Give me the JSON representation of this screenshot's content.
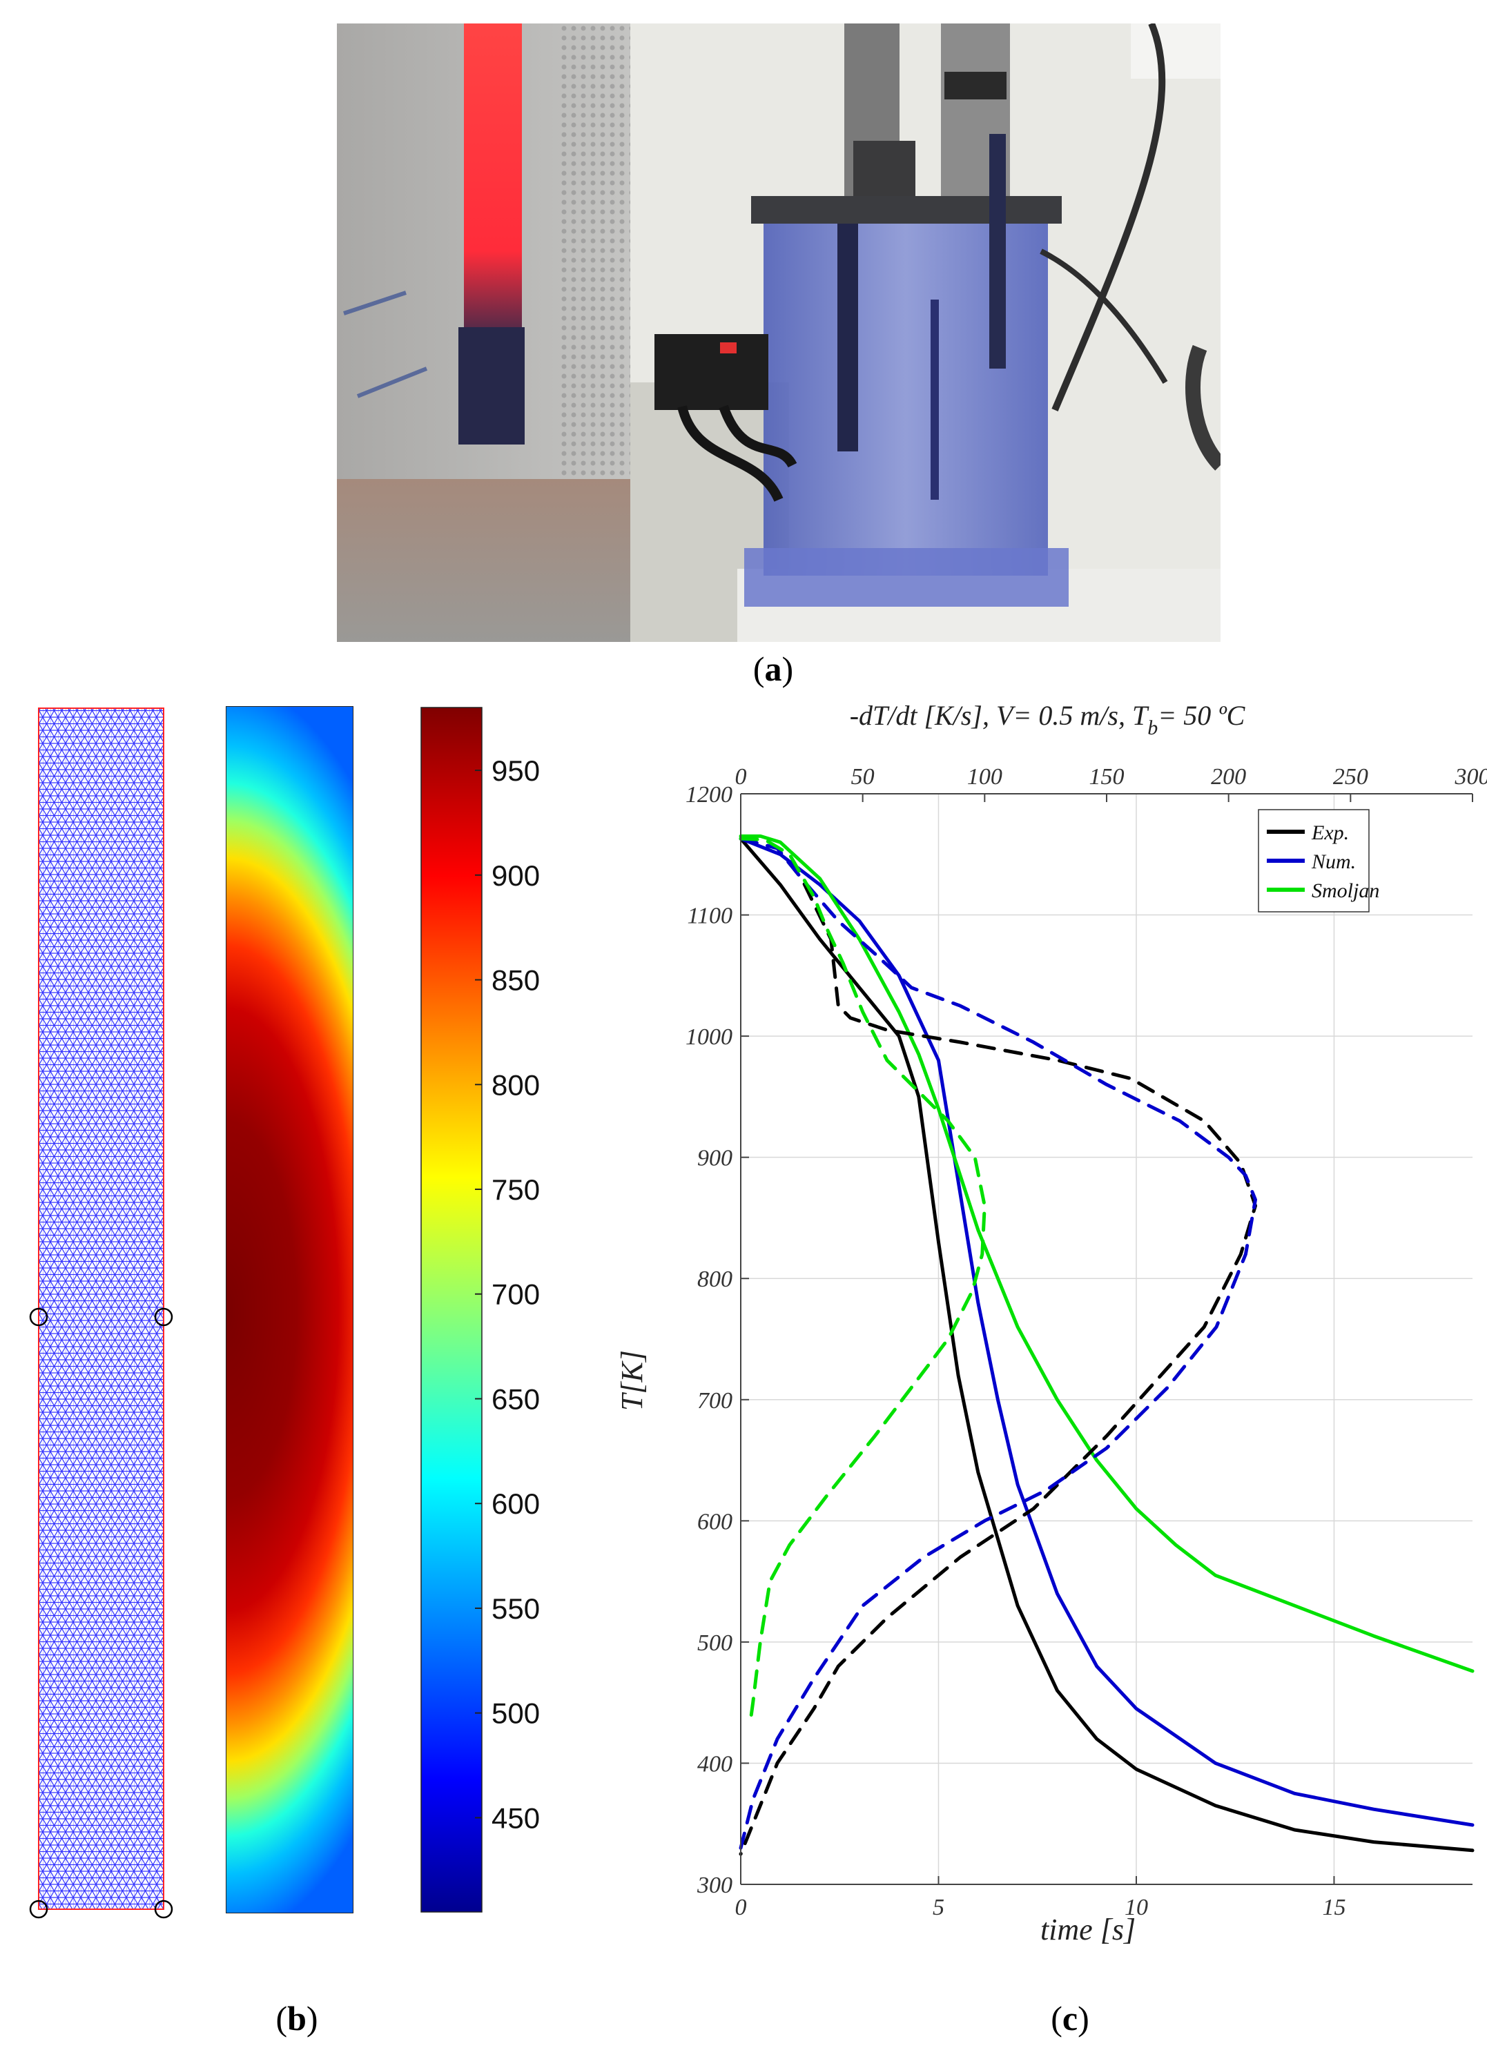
{
  "figure": {
    "panel_a_label": "a",
    "panel_b_label": "b",
    "panel_c_label": "c"
  },
  "colors": {
    "exp": "#000000",
    "num": "#0000cc",
    "smoljan": "#00e000",
    "grid": "#d8d8d8",
    "mesh": "#3333ff",
    "mesh_border": "#ff2222"
  },
  "colorbar": {
    "ticks": [
      "950",
      "900",
      "850",
      "800",
      "750",
      "700",
      "650",
      "600",
      "550",
      "500",
      "450"
    ],
    "tick_values": [
      950,
      900,
      850,
      800,
      750,
      700,
      650,
      600,
      550,
      500,
      450
    ],
    "min": 405,
    "max": 980,
    "colormap": "jet"
  },
  "chart_data": {
    "type": "line",
    "title": "-dT/dt [K/s], V= 0.5 m/s, T",
    "title_subscript": "b",
    "title_suffix": "= 50 ºC",
    "xlabel": "time [s]",
    "ylabel": "T[K]",
    "xlim": [
      0,
      18.5
    ],
    "ylim": [
      300,
      1200
    ],
    "xticks": [
      0,
      5,
      10,
      15
    ],
    "yticks": [
      300,
      400,
      500,
      600,
      700,
      800,
      900,
      1000,
      1100,
      1200
    ],
    "x2lim": [
      0,
      300
    ],
    "x2ticks": [
      0,
      50,
      100,
      150,
      200,
      250,
      300
    ],
    "grid": true,
    "legend_position": "top-right",
    "legend": [
      "Exp.",
      "Num.",
      "Smoljan"
    ],
    "series": [
      {
        "name": "Exp.",
        "style": "solid",
        "axis": "time",
        "x": [
          0,
          1,
          2,
          3,
          4,
          4.5,
          5,
          5.5,
          6,
          7,
          8,
          9,
          10,
          12,
          14,
          16,
          18.5
        ],
        "y": [
          1163,
          1125,
          1080,
          1040,
          1000,
          950,
          830,
          720,
          640,
          530,
          460,
          420,
          395,
          365,
          345,
          335,
          328
        ]
      },
      {
        "name": "Num.",
        "style": "solid",
        "axis": "time",
        "x": [
          0,
          1,
          2,
          3,
          4,
          5,
          5.5,
          6,
          6.5,
          7,
          8,
          9,
          10,
          12,
          14,
          16,
          18.5
        ],
        "y": [
          1163,
          1150,
          1125,
          1095,
          1050,
          980,
          880,
          780,
          700,
          630,
          540,
          480,
          445,
          400,
          375,
          362,
          349
        ]
      },
      {
        "name": "Smoljan",
        "style": "solid",
        "axis": "time",
        "x": [
          0,
          0.5,
          1,
          2,
          3,
          4,
          4.5,
          5,
          5.5,
          6,
          7,
          8,
          9,
          10,
          11,
          12,
          14,
          16,
          18.5
        ],
        "y": [
          1165,
          1165,
          1160,
          1130,
          1080,
          1020,
          985,
          940,
          890,
          840,
          760,
          700,
          650,
          610,
          580,
          555,
          530,
          505,
          476
        ]
      },
      {
        "name": "Exp. -dT/dt",
        "style": "dashed",
        "axis": "rate",
        "x": [
          0,
          15,
          25,
          37,
          40,
          45,
          60,
          90,
          130,
          160,
          190,
          205,
          211,
          205,
          190,
          170,
          150,
          120,
          90,
          60,
          40,
          30,
          15,
          5,
          0
        ],
        "y": [
          1163,
          1155,
          1130,
          1080,
          1025,
          1015,
          1005,
          995,
          980,
          965,
          930,
          895,
          860,
          820,
          760,
          715,
          670,
          610,
          570,
          520,
          480,
          445,
          400,
          350,
          325
        ]
      },
      {
        "name": "Num. -dT/dt",
        "style": "dashed",
        "axis": "rate",
        "x": [
          0,
          15,
          25,
          40,
          55,
          70,
          90,
          120,
          150,
          180,
          200,
          207,
          211,
          207,
          195,
          175,
          150,
          125,
          100,
          75,
          50,
          30,
          15,
          5,
          0
        ],
        "y": [
          1163,
          1155,
          1130,
          1095,
          1068,
          1040,
          1025,
          995,
          960,
          930,
          900,
          885,
          865,
          820,
          760,
          710,
          660,
          625,
          600,
          570,
          530,
          470,
          420,
          370,
          330
        ]
      },
      {
        "name": "Smoljan -dT/dt",
        "style": "dashed",
        "axis": "rate",
        "x": [
          0,
          10,
          20,
          30,
          35,
          42,
          50,
          60,
          70,
          85,
          96,
          100,
          99,
          95,
          85,
          70,
          55,
          35,
          20,
          12,
          8,
          5,
          4
        ],
        "y": [
          1163,
          1162,
          1150,
          1115,
          1090,
          1060,
          1020,
          980,
          960,
          930,
          900,
          860,
          820,
          790,
          750,
          710,
          670,
          620,
          580,
          550,
          500,
          450,
          435
        ]
      }
    ]
  }
}
